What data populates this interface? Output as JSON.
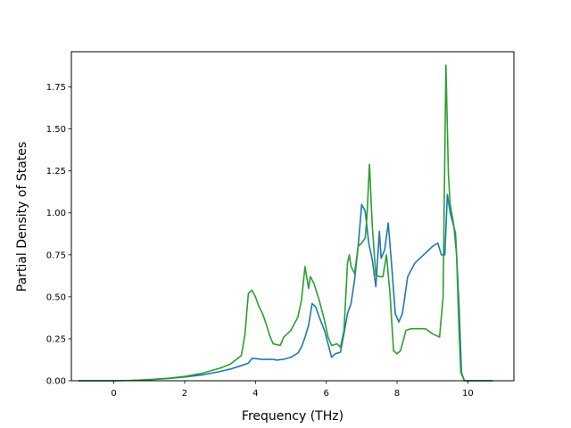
{
  "chart_data": {
    "type": "line",
    "title": "",
    "xlabel": "Frequency (THz)",
    "ylabel": "Partial Density of States",
    "xlim": [
      -1.2,
      11.3
    ],
    "ylim": [
      0.0,
      1.96
    ],
    "grid": false,
    "legend": "none",
    "xticks": [
      0,
      2,
      4,
      6,
      8,
      10
    ],
    "xtick_labels": [
      "0",
      "2",
      "4",
      "6",
      "8",
      "10"
    ],
    "yticks": [
      0.0,
      0.25,
      0.5,
      0.75,
      1.0,
      1.25,
      1.5,
      1.75
    ],
    "ytick_labels": [
      "0.00",
      "0.25",
      "0.50",
      "0.75",
      "1.00",
      "1.25",
      "1.50",
      "1.75"
    ],
    "series": [
      {
        "color": "#1f77b4",
        "points": [
          [
            -1.0,
            0.0
          ],
          [
            0.0,
            0.0
          ],
          [
            0.5,
            0.002
          ],
          [
            1.0,
            0.006
          ],
          [
            1.5,
            0.013
          ],
          [
            2.0,
            0.022
          ],
          [
            2.5,
            0.035
          ],
          [
            3.0,
            0.055
          ],
          [
            3.3,
            0.07
          ],
          [
            3.6,
            0.09
          ],
          [
            3.8,
            0.105
          ],
          [
            3.9,
            0.133
          ],
          [
            4.0,
            0.132
          ],
          [
            4.2,
            0.127
          ],
          [
            4.5,
            0.127
          ],
          [
            4.6,
            0.123
          ],
          [
            4.8,
            0.128
          ],
          [
            5.0,
            0.14
          ],
          [
            5.2,
            0.165
          ],
          [
            5.3,
            0.2
          ],
          [
            5.4,
            0.26
          ],
          [
            5.5,
            0.33
          ],
          [
            5.6,
            0.46
          ],
          [
            5.7,
            0.44
          ],
          [
            5.8,
            0.38
          ],
          [
            5.95,
            0.3
          ],
          [
            6.05,
            0.22
          ],
          [
            6.15,
            0.14
          ],
          [
            6.25,
            0.16
          ],
          [
            6.4,
            0.17
          ],
          [
            6.5,
            0.28
          ],
          [
            6.6,
            0.4
          ],
          [
            6.7,
            0.46
          ],
          [
            6.8,
            0.6
          ],
          [
            6.9,
            0.8
          ],
          [
            7.0,
            1.05
          ],
          [
            7.1,
            1.01
          ],
          [
            7.2,
            0.82
          ],
          [
            7.3,
            0.72
          ],
          [
            7.4,
            0.56
          ],
          [
            7.5,
            0.89
          ],
          [
            7.55,
            0.73
          ],
          [
            7.65,
            0.78
          ],
          [
            7.75,
            0.94
          ],
          [
            7.85,
            0.68
          ],
          [
            7.95,
            0.4
          ],
          [
            8.05,
            0.35
          ],
          [
            8.15,
            0.4
          ],
          [
            8.3,
            0.62
          ],
          [
            8.5,
            0.7
          ],
          [
            8.7,
            0.74
          ],
          [
            9.0,
            0.8
          ],
          [
            9.15,
            0.82
          ],
          [
            9.25,
            0.75
          ],
          [
            9.35,
            0.75
          ],
          [
            9.42,
            1.11
          ],
          [
            9.5,
            1.0
          ],
          [
            9.65,
            0.88
          ],
          [
            9.75,
            0.45
          ],
          [
            9.82,
            0.05
          ],
          [
            9.9,
            0.0
          ],
          [
            10.7,
            0.0
          ]
        ]
      },
      {
        "color": "#2ca02c",
        "points": [
          [
            -1.0,
            0.0
          ],
          [
            0.0,
            0.0
          ],
          [
            0.5,
            0.002
          ],
          [
            1.0,
            0.007
          ],
          [
            1.5,
            0.014
          ],
          [
            2.0,
            0.026
          ],
          [
            2.5,
            0.045
          ],
          [
            3.0,
            0.075
          ],
          [
            3.3,
            0.1
          ],
          [
            3.6,
            0.15
          ],
          [
            3.7,
            0.27
          ],
          [
            3.8,
            0.52
          ],
          [
            3.9,
            0.54
          ],
          [
            4.0,
            0.5
          ],
          [
            4.1,
            0.44
          ],
          [
            4.2,
            0.4
          ],
          [
            4.3,
            0.34
          ],
          [
            4.4,
            0.27
          ],
          [
            4.5,
            0.22
          ],
          [
            4.7,
            0.21
          ],
          [
            4.8,
            0.26
          ],
          [
            5.0,
            0.3
          ],
          [
            5.2,
            0.38
          ],
          [
            5.3,
            0.48
          ],
          [
            5.4,
            0.68
          ],
          [
            5.5,
            0.55
          ],
          [
            5.55,
            0.62
          ],
          [
            5.65,
            0.58
          ],
          [
            5.8,
            0.48
          ],
          [
            5.95,
            0.36
          ],
          [
            6.05,
            0.26
          ],
          [
            6.15,
            0.21
          ],
          [
            6.3,
            0.22
          ],
          [
            6.4,
            0.2
          ],
          [
            6.5,
            0.3
          ],
          [
            6.6,
            0.7
          ],
          [
            6.65,
            0.75
          ],
          [
            6.7,
            0.68
          ],
          [
            6.8,
            0.64
          ],
          [
            6.9,
            0.8
          ],
          [
            7.0,
            0.82
          ],
          [
            7.1,
            0.85
          ],
          [
            7.15,
            0.98
          ],
          [
            7.22,
            1.29
          ],
          [
            7.3,
            0.92
          ],
          [
            7.4,
            0.63
          ],
          [
            7.5,
            0.62
          ],
          [
            7.6,
            0.62
          ],
          [
            7.7,
            0.75
          ],
          [
            7.8,
            0.52
          ],
          [
            7.9,
            0.18
          ],
          [
            8.0,
            0.16
          ],
          [
            8.1,
            0.18
          ],
          [
            8.25,
            0.3
          ],
          [
            8.4,
            0.31
          ],
          [
            8.6,
            0.31
          ],
          [
            8.8,
            0.31
          ],
          [
            9.0,
            0.28
          ],
          [
            9.2,
            0.26
          ],
          [
            9.3,
            0.5
          ],
          [
            9.38,
            1.88
          ],
          [
            9.45,
            1.23
          ],
          [
            9.5,
            1.05
          ],
          [
            9.6,
            0.93
          ],
          [
            9.68,
            0.75
          ],
          [
            9.75,
            0.3
          ],
          [
            9.8,
            0.05
          ],
          [
            9.9,
            0.0
          ],
          [
            10.7,
            0.0
          ]
        ]
      }
    ]
  }
}
